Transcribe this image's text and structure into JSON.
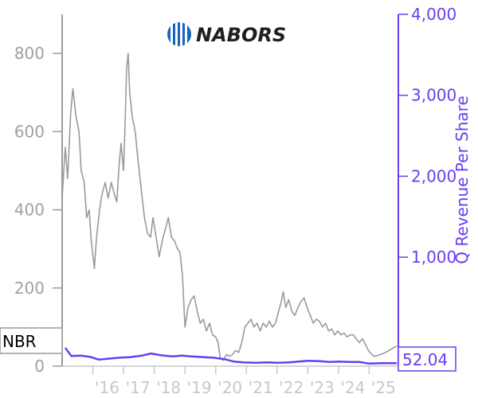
{
  "logo": {
    "text": "NABORS"
  },
  "ticker_badge": "NBR",
  "last_value_badge": "52.04",
  "chart_data": {
    "type": "line",
    "title": "",
    "xlabel": "",
    "ylabel_left": "",
    "ylabel_right": "Q Revenue Per Share",
    "x_ticks": [
      "'16",
      "'17",
      "'18",
      "'19",
      "'20",
      "'21",
      "'22",
      "'23",
      "'24",
      "'25"
    ],
    "x_tick_years": [
      2016,
      2017,
      2018,
      2019,
      2020,
      2021,
      2022,
      2023,
      2024,
      2025
    ],
    "xlim": [
      2015.0,
      2025.95
    ],
    "ylim_left": [
      0,
      900
    ],
    "ylim_right": [
      -346,
      4000
    ],
    "yticks_left": [
      0,
      200,
      400,
      600,
      800
    ],
    "yticks_right": [
      1000,
      2000,
      3000,
      4000
    ],
    "yticks_right_labels": [
      "1,000",
      "2,000",
      "3,000",
      "4,000"
    ],
    "grid": false,
    "series": [
      {
        "name": "NBR",
        "axis": "left",
        "color": "#9a9a9a",
        "points": [
          [
            2015.0,
            430
          ],
          [
            2015.1,
            560
          ],
          [
            2015.18,
            480
          ],
          [
            2015.28,
            650
          ],
          [
            2015.35,
            710
          ],
          [
            2015.45,
            640
          ],
          [
            2015.55,
            600
          ],
          [
            2015.62,
            500
          ],
          [
            2015.72,
            470
          ],
          [
            2015.8,
            380
          ],
          [
            2015.88,
            400
          ],
          [
            2015.95,
            320
          ],
          [
            2016.05,
            250
          ],
          [
            2016.12,
            330
          ],
          [
            2016.22,
            400
          ],
          [
            2016.3,
            440
          ],
          [
            2016.4,
            470
          ],
          [
            2016.5,
            430
          ],
          [
            2016.6,
            470
          ],
          [
            2016.7,
            440
          ],
          [
            2016.78,
            420
          ],
          [
            2016.86,
            520
          ],
          [
            2016.92,
            570
          ],
          [
            2017.0,
            500
          ],
          [
            2017.05,
            620
          ],
          [
            2017.1,
            760
          ],
          [
            2017.15,
            800
          ],
          [
            2017.2,
            700
          ],
          [
            2017.28,
            640
          ],
          [
            2017.38,
            600
          ],
          [
            2017.48,
            520
          ],
          [
            2017.58,
            450
          ],
          [
            2017.68,
            380
          ],
          [
            2017.78,
            340
          ],
          [
            2017.88,
            330
          ],
          [
            2017.96,
            380
          ],
          [
            2018.06,
            330
          ],
          [
            2018.16,
            280
          ],
          [
            2018.26,
            320
          ],
          [
            2018.36,
            350
          ],
          [
            2018.46,
            380
          ],
          [
            2018.56,
            330
          ],
          [
            2018.66,
            320
          ],
          [
            2018.76,
            300
          ],
          [
            2018.84,
            290
          ],
          [
            2018.92,
            230
          ],
          [
            2019.0,
            100
          ],
          [
            2019.1,
            150
          ],
          [
            2019.2,
            170
          ],
          [
            2019.3,
            180
          ],
          [
            2019.4,
            140
          ],
          [
            2019.5,
            110
          ],
          [
            2019.6,
            120
          ],
          [
            2019.7,
            90
          ],
          [
            2019.8,
            110
          ],
          [
            2019.9,
            80
          ],
          [
            2020.0,
            75
          ],
          [
            2020.08,
            60
          ],
          [
            2020.15,
            20
          ],
          [
            2020.25,
            15
          ],
          [
            2020.35,
            30
          ],
          [
            2020.45,
            25
          ],
          [
            2020.55,
            30
          ],
          [
            2020.65,
            40
          ],
          [
            2020.75,
            35
          ],
          [
            2020.85,
            60
          ],
          [
            2020.95,
            100
          ],
          [
            2021.05,
            110
          ],
          [
            2021.15,
            120
          ],
          [
            2021.25,
            100
          ],
          [
            2021.35,
            110
          ],
          [
            2021.45,
            90
          ],
          [
            2021.55,
            110
          ],
          [
            2021.65,
            100
          ],
          [
            2021.75,
            115
          ],
          [
            2021.85,
            100
          ],
          [
            2021.95,
            110
          ],
          [
            2022.05,
            140
          ],
          [
            2022.12,
            160
          ],
          [
            2022.2,
            190
          ],
          [
            2022.28,
            150
          ],
          [
            2022.38,
            170
          ],
          [
            2022.48,
            140
          ],
          [
            2022.58,
            130
          ],
          [
            2022.68,
            150
          ],
          [
            2022.78,
            165
          ],
          [
            2022.88,
            175
          ],
          [
            2022.98,
            150
          ],
          [
            2023.08,
            130
          ],
          [
            2023.18,
            110
          ],
          [
            2023.28,
            120
          ],
          [
            2023.38,
            115
          ],
          [
            2023.48,
            100
          ],
          [
            2023.58,
            110
          ],
          [
            2023.68,
            90
          ],
          [
            2023.78,
            95
          ],
          [
            2023.88,
            80
          ],
          [
            2023.98,
            90
          ],
          [
            2024.08,
            80
          ],
          [
            2024.18,
            85
          ],
          [
            2024.28,
            75
          ],
          [
            2024.38,
            80
          ],
          [
            2024.48,
            80
          ],
          [
            2024.58,
            70
          ],
          [
            2024.68,
            60
          ],
          [
            2024.78,
            70
          ],
          [
            2024.88,
            55
          ],
          [
            2024.98,
            40
          ],
          [
            2025.08,
            30
          ],
          [
            2025.18,
            25
          ],
          [
            2025.3,
            28
          ],
          [
            2025.45,
            32
          ],
          [
            2025.6,
            38
          ],
          [
            2025.75,
            45
          ],
          [
            2025.9,
            52
          ]
        ]
      },
      {
        "name": "Q Revenue Per Share",
        "axis": "right",
        "color": "#6a3df0",
        "points": [
          [
            2015.1,
            -120
          ],
          [
            2015.3,
            -220
          ],
          [
            2015.6,
            -215
          ],
          [
            2015.9,
            -230
          ],
          [
            2016.2,
            -265
          ],
          [
            2016.6,
            -250
          ],
          [
            2016.9,
            -240
          ],
          [
            2017.2,
            -235
          ],
          [
            2017.6,
            -215
          ],
          [
            2017.9,
            -190
          ],
          [
            2018.2,
            -210
          ],
          [
            2018.6,
            -225
          ],
          [
            2018.9,
            -215
          ],
          [
            2019.2,
            -225
          ],
          [
            2019.6,
            -235
          ],
          [
            2019.9,
            -240
          ],
          [
            2020.3,
            -260
          ],
          [
            2020.6,
            -290
          ],
          [
            2020.9,
            -300
          ],
          [
            2021.3,
            -305
          ],
          [
            2021.7,
            -300
          ],
          [
            2022.0,
            -305
          ],
          [
            2022.4,
            -300
          ],
          [
            2022.7,
            -290
          ],
          [
            2023.0,
            -280
          ],
          [
            2023.4,
            -285
          ],
          [
            2023.7,
            -295
          ],
          [
            2024.0,
            -290
          ],
          [
            2024.4,
            -295
          ],
          [
            2024.7,
            -295
          ],
          [
            2025.0,
            -315
          ],
          [
            2025.4,
            -310
          ],
          [
            2025.9,
            -310
          ]
        ]
      }
    ]
  }
}
